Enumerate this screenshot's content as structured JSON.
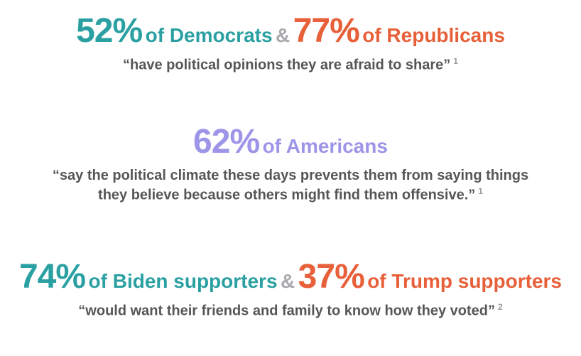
{
  "colors": {
    "teal": "#2AA0A2",
    "orange": "#E8603A",
    "purple": "#9C95E8",
    "ampersand_gray": "#A6A8AB",
    "quote_gray": "#565656",
    "footnote_gray": "#9A9A9A",
    "background": "#FFFFFF"
  },
  "rows": {
    "party": {
      "pct_democrats": "52%",
      "label_democrats": "of Democrats",
      "ampersand": "&",
      "pct_republicans": "77%",
      "label_republicans": "of Republicans",
      "quote": "“have political opinions they are afraid to share”",
      "footnote": "1"
    },
    "americans": {
      "pct": "62%",
      "label": "of Americans",
      "quote_line1": "“say the political climate these days prevents them from saying things",
      "quote_line2": "they believe because others might find them offensive.”",
      "footnote": "1"
    },
    "supporters": {
      "pct_biden": "74%",
      "label_biden": "of Biden supporters",
      "ampersand": "&",
      "pct_trump": "37%",
      "label_trump": "of Trump supporters",
      "quote": "“would want their friends and family to know how they voted”",
      "footnote": "2"
    }
  },
  "chart_data": {
    "type": "table",
    "title": "Political self-censorship statistics",
    "columns": [
      "group",
      "percent",
      "statement",
      "source_footnote"
    ],
    "rows": [
      [
        "Democrats",
        52,
        "have political opinions they are afraid to share",
        1
      ],
      [
        "Republicans",
        77,
        "have political opinions they are afraid to share",
        1
      ],
      [
        "Americans",
        62,
        "say the political climate these days prevents them from saying things they believe because others might find them offensive.",
        1
      ],
      [
        "Biden supporters",
        74,
        "would want their friends and family to know how they voted",
        2
      ],
      [
        "Trump supporters",
        37,
        "would want their friends and family to know how they voted",
        2
      ]
    ]
  }
}
